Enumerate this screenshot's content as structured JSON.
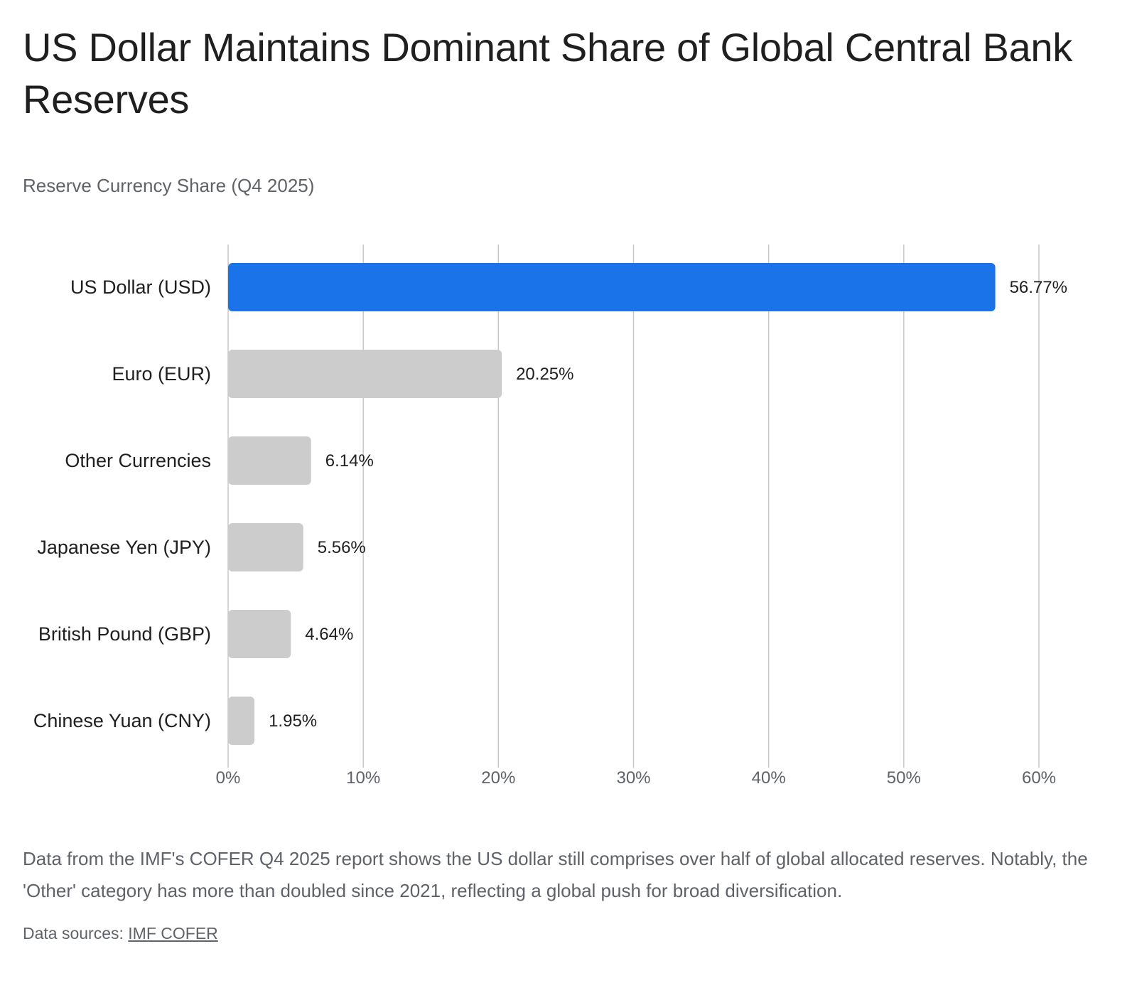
{
  "header": {
    "title": "US Dollar Maintains Dominant Share of Global Central Bank Reserves",
    "subtitle": "Reserve Currency Share (Q4 2025)"
  },
  "caption": "Data from the IMF's COFER Q4 2025 report shows the US dollar still comprises over half of global allocated reserves. Notably, the 'Other' category has more than doubled since 2021, reflecting a global push for broad diversification.",
  "sources": {
    "label": "Data sources:",
    "link_text": "IMF COFER"
  },
  "chart_data": {
    "type": "bar",
    "orientation": "horizontal",
    "title": "Reserve Currency Share (Q4 2025)",
    "categories": [
      "US Dollar (USD)",
      "Euro (EUR)",
      "Other Currencies",
      "Japanese Yen (JPY)",
      "British Pound (GBP)",
      "Chinese Yuan (CNY)"
    ],
    "values": [
      56.77,
      20.25,
      6.14,
      5.56,
      4.64,
      1.95
    ],
    "value_labels": [
      "56.77%",
      "20.25%",
      "6.14%",
      "5.56%",
      "4.64%",
      "1.95%"
    ],
    "xlim": [
      0,
      60
    ],
    "xticks": [
      0,
      10,
      20,
      30,
      40,
      50,
      60
    ],
    "xtick_labels": [
      "0%",
      "10%",
      "20%",
      "30%",
      "40%",
      "50%",
      "60%"
    ],
    "grid": true,
    "legend": "none",
    "colors": {
      "highlight": "#1a73e8",
      "default": "#cccccc",
      "grid": "#c8c8c8",
      "tick_text": "#5f6368",
      "label_text": "#1f1f1f"
    },
    "highlight_index": 0
  }
}
